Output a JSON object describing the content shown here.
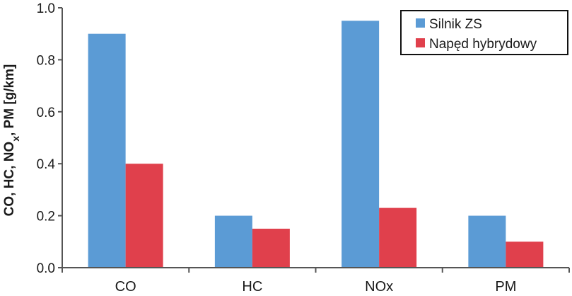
{
  "chart_data": {
    "type": "bar",
    "categories": [
      "CO",
      "HC",
      "NOx",
      "PM"
    ],
    "series": [
      {
        "name": "Silnik ZS",
        "values": [
          0.9,
          0.2,
          0.95,
          0.2
        ],
        "color": "#5b9bd5"
      },
      {
        "name": "Napęd hybrydowy",
        "values": [
          0.4,
          0.15,
          0.23,
          0.1
        ],
        "color": "#e0404c"
      }
    ],
    "ylabel": {
      "parts": [
        {
          "text": "CO, HC, NO",
          "sub": false
        },
        {
          "text": "x",
          "sub": true
        },
        {
          "text": ", PM [g/km]",
          "sub": false
        }
      ]
    },
    "ylim": [
      0,
      1.0
    ],
    "yticks": [
      "0.0",
      "0.2",
      "0.4",
      "0.6",
      "0.8",
      "1.0"
    ],
    "grid": false,
    "legend_position": "top-right"
  }
}
